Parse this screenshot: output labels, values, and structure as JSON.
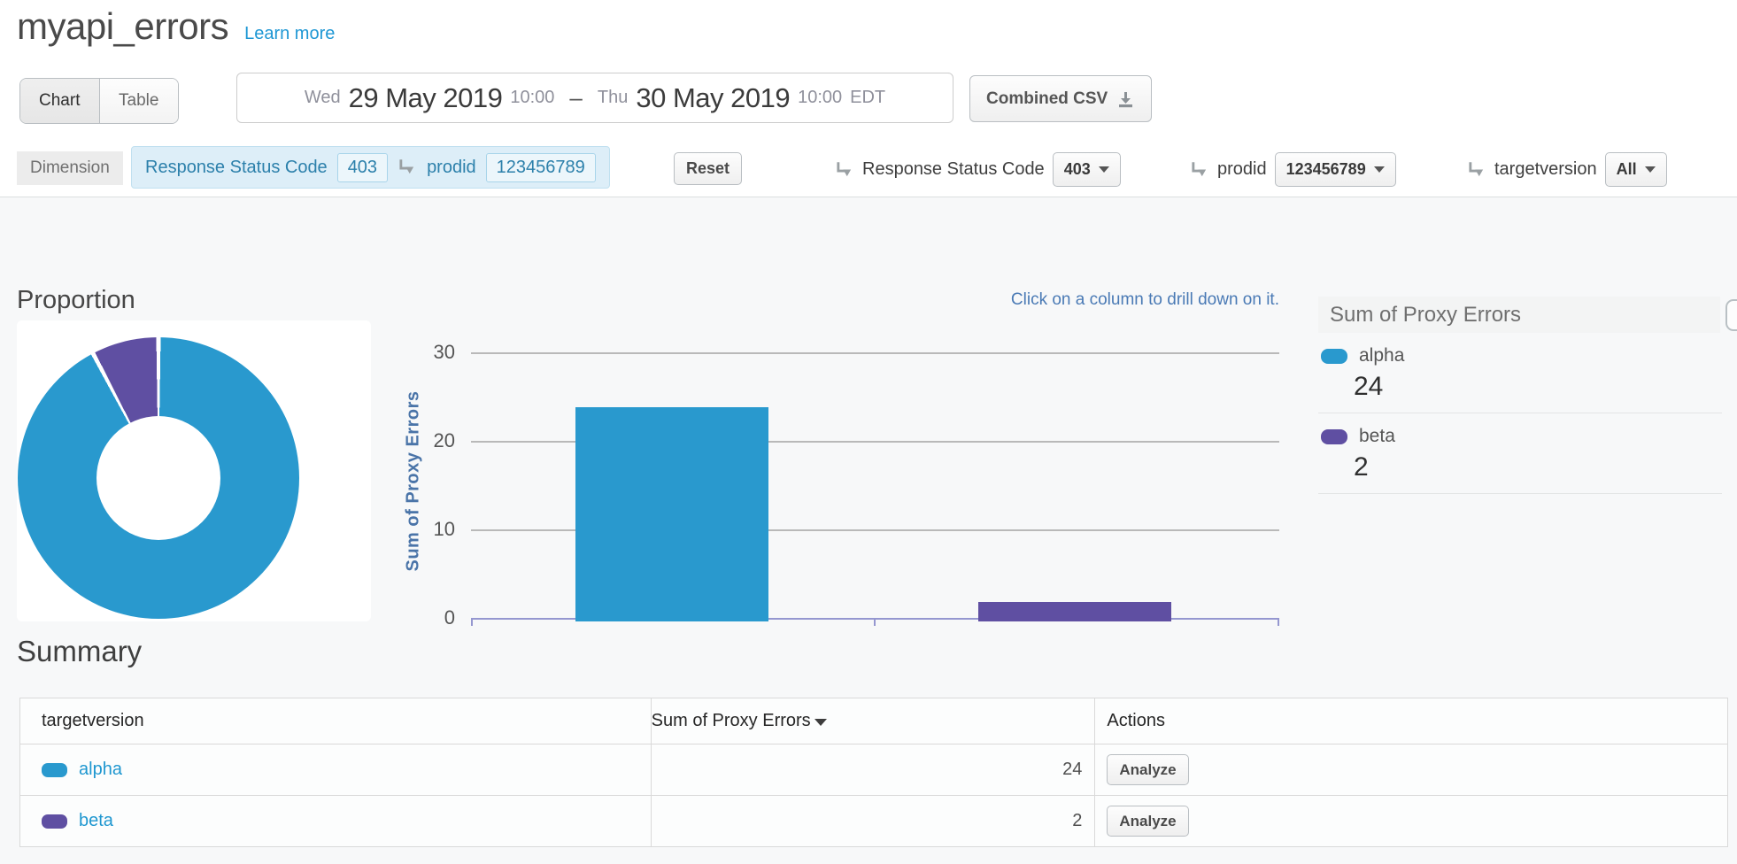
{
  "header": {
    "title": "myapi_errors",
    "learn_more": "Learn more"
  },
  "toolbar": {
    "view_toggle": {
      "chart": "Chart",
      "table": "Table"
    },
    "date_range": {
      "start_day": "Wed",
      "start_date": "29 May 2019",
      "start_time": "10:00",
      "separator": "–",
      "end_day": "Thu",
      "end_date": "30 May 2019",
      "end_time": "10:00",
      "timezone": "EDT"
    },
    "combined_csv_label": "Combined CSV"
  },
  "dimension_bar": {
    "label": "Dimension",
    "active_filters": [
      {
        "name": "Response Status Code",
        "value": "403"
      },
      {
        "name": "prodid",
        "value": "123456789"
      }
    ],
    "reset_label": "Reset",
    "drilldowns": [
      {
        "name": "Response Status Code",
        "value": "403"
      },
      {
        "name": "prodid",
        "value": "123456789"
      },
      {
        "name": "targetversion",
        "value": "All"
      }
    ]
  },
  "legend": {
    "title": "Sum of Proxy Errors",
    "items": [
      {
        "label": "alpha",
        "value": "24",
        "color": "#2999ce"
      },
      {
        "label": "beta",
        "value": "2",
        "color": "#5f4fa2"
      }
    ]
  },
  "summary": {
    "title": "Summary",
    "columns": {
      "dimension": "targetversion",
      "metric": "Sum of Proxy Errors",
      "actions": "Actions"
    },
    "rows": [
      {
        "label": "alpha",
        "value": "24",
        "action": "Analyze",
        "color": "#2999ce"
      },
      {
        "label": "beta",
        "value": "2",
        "action": "Analyze",
        "color": "#5f4fa2"
      }
    ]
  },
  "colors": {
    "accent_blue": "#2999ce",
    "accent_purple": "#5f4fa2",
    "link": "#1e97d4",
    "axis_line": "#9597d0"
  },
  "chart_data": [
    {
      "type": "pie",
      "title": "Proportion",
      "labels": [
        "alpha",
        "beta"
      ],
      "values": [
        24,
        2
      ],
      "colors": [
        "#2999ce",
        "#5f4fa2"
      ],
      "donut": true
    },
    {
      "type": "bar",
      "categories": [
        "alpha",
        "beta"
      ],
      "values": [
        24,
        2
      ],
      "colors": [
        "#2999ce",
        "#5f4fa2"
      ],
      "title": "",
      "xlabel": "",
      "ylabel": "Sum of Proxy Errors",
      "ylim": [
        0,
        30
      ],
      "yticks": [
        0,
        10,
        20,
        30
      ],
      "grid": true,
      "legend_position": "right",
      "annotation": "Click on a column to drill down on it."
    }
  ]
}
